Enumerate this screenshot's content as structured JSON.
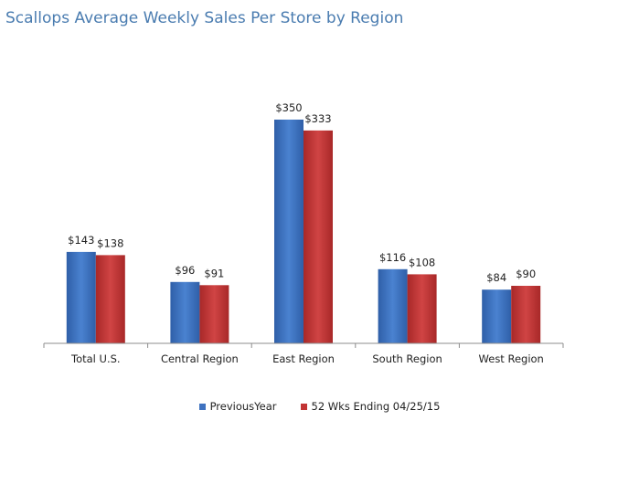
{
  "chart_data": {
    "type": "bar",
    "title": "Scallops Average Weekly Sales Per Store by Region",
    "xlabel": "",
    "ylabel": "",
    "categories": [
      "Total U.S.",
      "Central Region",
      "East Region",
      "South Region",
      "West Region"
    ],
    "series": [
      {
        "name": "PreviousYear",
        "values": [
          143,
          96,
          350,
          116,
          84
        ],
        "labels": [
          "$143",
          "$96",
          "$350",
          "$116",
          "$84"
        ],
        "color": "#3f72c0"
      },
      {
        "name": "52 Wks Ending 04/25/15",
        "values": [
          138,
          91,
          333,
          108,
          90
        ],
        "labels": [
          "$138",
          "$91",
          "$333",
          "$108",
          "$90"
        ],
        "color": "#c23434"
      }
    ],
    "ylim": [
      0,
      350
    ],
    "grid": false,
    "legend": "bottom"
  }
}
